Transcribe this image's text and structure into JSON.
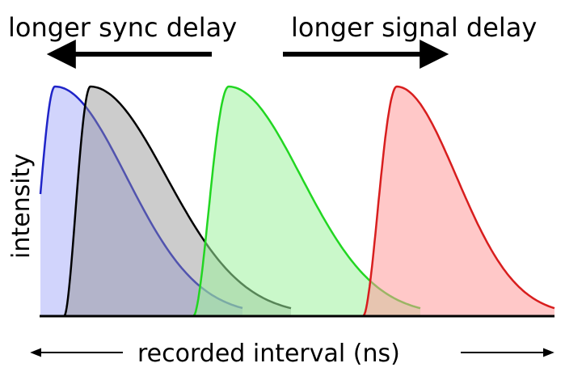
{
  "labels": {
    "left_arrow": "longer sync delay",
    "right_arrow": "longer signal delay",
    "y_axis": "intensity",
    "x_axis": "recorded interval (ns)"
  },
  "curves": [
    {
      "name": "blue",
      "stroke": "#1f24c8",
      "fill": "#c9cdfb",
      "fill_opacity": 0.85
    },
    {
      "name": "black",
      "stroke": "#000000",
      "fill": "#8e8e8e",
      "fill_opacity": 0.45
    },
    {
      "name": "green",
      "stroke": "#22d622",
      "fill": "#9ff39f",
      "fill_opacity": 0.55
    },
    {
      "name": "red",
      "stroke": "#d81e1e",
      "fill": "#ff9b9b",
      "fill_opacity": 0.55
    }
  ],
  "colors": {
    "axis": "#000000",
    "arrow": "#000000",
    "background": "#ffffff"
  }
}
